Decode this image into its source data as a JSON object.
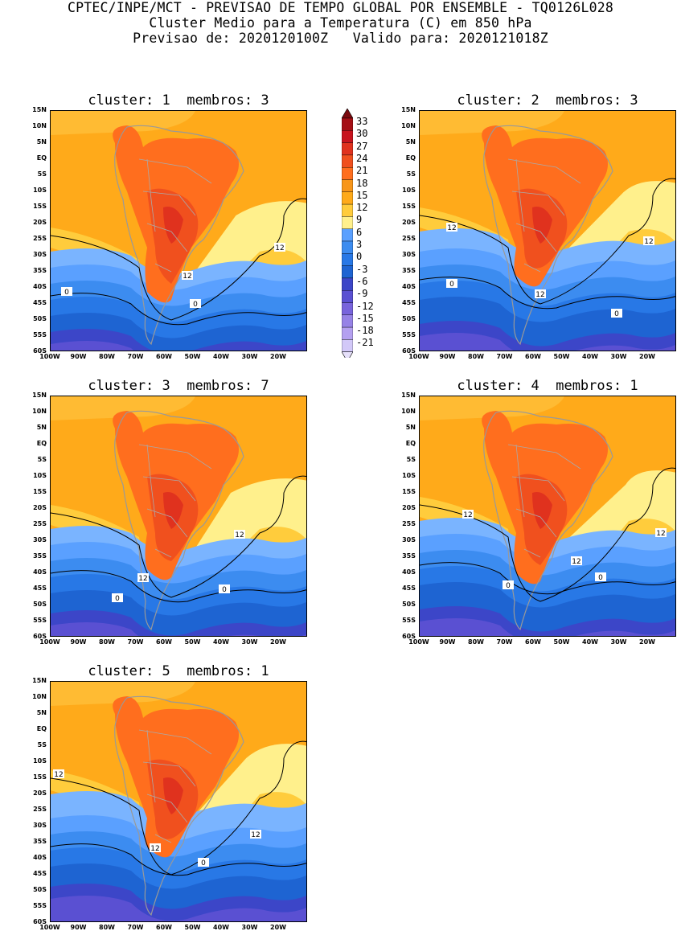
{
  "header": {
    "line1": "CPTEC/INPE/MCT - PREVISAO DE TEMPO GLOBAL POR ENSEMBLE - TQ0126L028",
    "line2": "Cluster Medio para a Temperatura (C) em 850 hPa",
    "line3": "Previsao de: 2020120100Z   Valido para: 2020121018Z"
  },
  "lat_labels": [
    "15N",
    "10N",
    "5N",
    "EQ",
    "5S",
    "10S",
    "15S",
    "20S",
    "25S",
    "30S",
    "35S",
    "40S",
    "45S",
    "50S",
    "55S",
    "60S"
  ],
  "lon_labels": [
    "100W",
    "90W",
    "80W",
    "70W",
    "60W",
    "50W",
    "40W",
    "30W",
    "20W"
  ],
  "colorbar": {
    "labels": [
      "33",
      "30",
      "27",
      "24",
      "21",
      "18",
      "15",
      "12",
      "9",
      "6",
      "3",
      "0",
      "-3",
      "-6",
      "-9",
      "-12",
      "-15",
      "-18",
      "-21"
    ],
    "colors": [
      "#a50f15",
      "#c8141e",
      "#e0321e",
      "#f0501e",
      "#ff6e1e",
      "#f8961a",
      "#ffaa1a",
      "#ffcc3c",
      "#fff08c",
      "#5aa0ff",
      "#3c8cf0",
      "#2878e6",
      "#1e64d2",
      "#3c46c8",
      "#5a50d2",
      "#7864dc",
      "#9682e6",
      "#b4a0f0",
      "#d2c8f8"
    ],
    "top_color": "#7a0a0e",
    "bottom_color": "#e6e0fa"
  },
  "panels": [
    {
      "title": "cluster: 1  membros: 3",
      "contour_labels": [
        "12",
        "12",
        "0",
        "0"
      ]
    },
    {
      "title": "cluster: 2  membros: 3",
      "contour_labels": [
        "12",
        "12",
        "12",
        "0",
        "0"
      ]
    },
    {
      "title": "cluster: 3  membros: 7",
      "contour_labels": [
        "12",
        "12",
        "0",
        "0"
      ]
    },
    {
      "title": "cluster: 4  membros: 1",
      "contour_labels": [
        "12",
        "12",
        "12",
        "0",
        "0"
      ]
    },
    {
      "title": "cluster: 5  membros: 1",
      "contour_labels": [
        "12",
        "12",
        "12",
        "0"
      ]
    }
  ]
}
